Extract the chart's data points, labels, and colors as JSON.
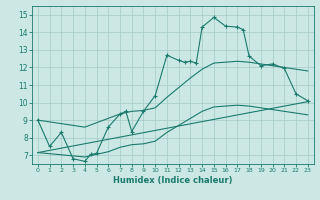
{
  "xlabel": "Humidex (Indice chaleur)",
  "bg_color": "#cce8e4",
  "grid_color": "#aacfcb",
  "line_color": "#1a7a6e",
  "xlim": [
    -0.5,
    23.5
  ],
  "ylim": [
    6.5,
    15.5
  ],
  "xticks": [
    0,
    1,
    2,
    3,
    4,
    5,
    6,
    7,
    8,
    9,
    10,
    11,
    12,
    13,
    14,
    15,
    16,
    17,
    18,
    19,
    20,
    21,
    22,
    23
  ],
  "yticks": [
    7,
    8,
    9,
    10,
    11,
    12,
    13,
    14,
    15
  ],
  "main_x": [
    0,
    1,
    2,
    3,
    4,
    4.5,
    5,
    6,
    7,
    7.5,
    8,
    9,
    10,
    11,
    12,
    12.5,
    13,
    13.5,
    14,
    15,
    16,
    17,
    17.5,
    18,
    19,
    20,
    21,
    22,
    23
  ],
  "main_y": [
    9.0,
    7.5,
    8.3,
    6.8,
    6.65,
    7.05,
    7.1,
    8.6,
    9.35,
    9.5,
    8.35,
    9.5,
    10.4,
    12.7,
    12.4,
    12.3,
    12.35,
    12.25,
    14.3,
    14.85,
    14.35,
    14.3,
    14.15,
    12.65,
    12.1,
    12.2,
    11.95,
    10.5,
    10.1
  ],
  "trend_x": [
    0,
    23
  ],
  "trend_y": [
    7.15,
    10.05
  ],
  "upper_x": [
    0,
    4,
    5,
    6,
    7,
    8,
    9,
    10,
    11,
    12,
    13,
    14,
    15,
    16,
    17,
    18,
    19,
    20,
    21,
    22,
    23
  ],
  "upper_y": [
    9.0,
    8.6,
    8.85,
    9.1,
    9.35,
    9.5,
    9.55,
    9.7,
    10.3,
    10.85,
    11.4,
    11.9,
    12.25,
    12.3,
    12.35,
    12.3,
    12.2,
    12.1,
    12.0,
    11.9,
    11.8
  ],
  "lower_x": [
    0,
    4,
    5,
    6,
    7,
    8,
    9,
    10,
    11,
    12,
    13,
    14,
    15,
    16,
    17,
    18,
    19,
    20,
    21,
    22,
    23
  ],
  "lower_y": [
    7.15,
    6.9,
    7.05,
    7.2,
    7.45,
    7.6,
    7.65,
    7.8,
    8.3,
    8.7,
    9.1,
    9.5,
    9.75,
    9.8,
    9.85,
    9.8,
    9.7,
    9.6,
    9.5,
    9.4,
    9.3
  ]
}
